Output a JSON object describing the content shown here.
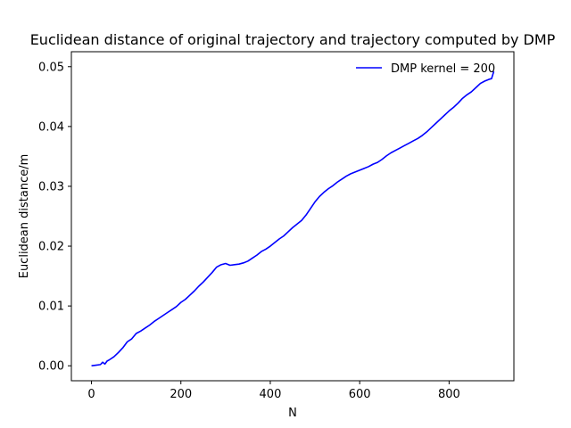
{
  "chart_data": {
    "type": "line",
    "title": "Euclidean distance of original trajectory and trajectory computed by DMP",
    "xlabel": "N",
    "ylabel": "Euclidean distance/m",
    "xlim": [
      -45,
      945
    ],
    "ylim": [
      -0.0025,
      0.0525
    ],
    "xticks": [
      0,
      200,
      400,
      600,
      800
    ],
    "xtick_labels": [
      "0",
      "200",
      "400",
      "600",
      "800"
    ],
    "yticks": [
      0.0,
      0.01,
      0.02,
      0.03,
      0.04,
      0.05
    ],
    "ytick_labels": [
      "0.00",
      "0.01",
      "0.02",
      "0.03",
      "0.04",
      "0.05"
    ],
    "grid": false,
    "legend_position": "upper-right",
    "series": [
      {
        "name": "DMP kernel = 200",
        "color": "#0000ff",
        "x": [
          0,
          10,
          20,
          25,
          30,
          35,
          40,
          50,
          60,
          70,
          80,
          90,
          100,
          110,
          120,
          130,
          140,
          150,
          160,
          170,
          180,
          190,
          200,
          210,
          220,
          230,
          240,
          250,
          260,
          270,
          280,
          290,
          300,
          310,
          320,
          330,
          340,
          350,
          360,
          370,
          380,
          390,
          400,
          410,
          420,
          430,
          440,
          450,
          460,
          470,
          480,
          490,
          500,
          510,
          520,
          530,
          540,
          550,
          560,
          570,
          580,
          590,
          600,
          610,
          620,
          630,
          640,
          650,
          660,
          670,
          680,
          690,
          700,
          710,
          720,
          730,
          740,
          750,
          760,
          770,
          780,
          790,
          800,
          810,
          820,
          830,
          840,
          850,
          860,
          870,
          880,
          890,
          895,
          900
        ],
        "y": [
          0.0,
          0.0001,
          0.0002,
          0.0006,
          0.0003,
          0.0008,
          0.001,
          0.0015,
          0.0022,
          0.003,
          0.004,
          0.0045,
          0.0054,
          0.0058,
          0.0063,
          0.0068,
          0.0074,
          0.0079,
          0.0084,
          0.0089,
          0.0094,
          0.0099,
          0.0106,
          0.0111,
          0.0118,
          0.0125,
          0.0133,
          0.014,
          0.0148,
          0.0156,
          0.0165,
          0.0169,
          0.0171,
          0.0168,
          0.0169,
          0.017,
          0.0172,
          0.0175,
          0.018,
          0.0185,
          0.0191,
          0.0195,
          0.02,
          0.0206,
          0.0212,
          0.0217,
          0.0224,
          0.0231,
          0.0237,
          0.0243,
          0.0252,
          0.0263,
          0.0274,
          0.0283,
          0.029,
          0.0296,
          0.0301,
          0.0307,
          0.0312,
          0.0317,
          0.0321,
          0.0324,
          0.0327,
          0.033,
          0.0333,
          0.0337,
          0.034,
          0.0345,
          0.0351,
          0.0356,
          0.036,
          0.0364,
          0.0368,
          0.0372,
          0.0376,
          0.038,
          0.0385,
          0.0391,
          0.0398,
          0.0405,
          0.0412,
          0.0419,
          0.0426,
          0.0432,
          0.0439,
          0.0447,
          0.0453,
          0.0458,
          0.0465,
          0.0472,
          0.0476,
          0.0479,
          0.048,
          0.0492
        ]
      }
    ]
  }
}
